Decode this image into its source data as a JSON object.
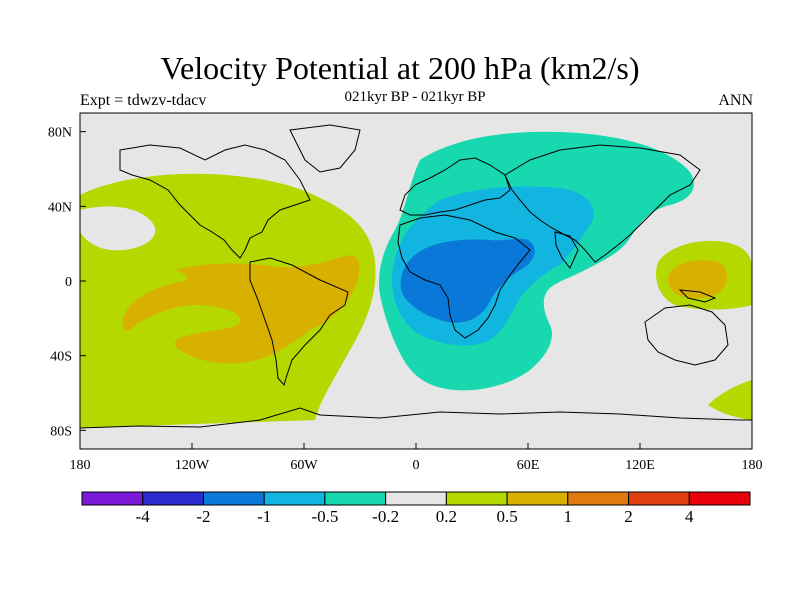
{
  "title": "Velocity Potential at 200 hPa (km2/s)",
  "subtitle": "021kyr BP - 021kyr BP",
  "left_string": "Expt = tdwzv-tdacv",
  "right_string": "ANN",
  "chart_data": {
    "type": "heatmap",
    "title": "Velocity Potential at 200 hPa (km2/s)",
    "subtitle": "021kyr BP - 021kyr BP",
    "projection": "cylindrical-equidistant",
    "lon_range": [
      -180,
      180
    ],
    "lat_range": [
      -90,
      90
    ],
    "x_ticks": [
      "180",
      "120W",
      "60W",
      "0",
      "60E",
      "120E",
      "180"
    ],
    "x_tick_values": [
      -180,
      -120,
      -60,
      0,
      60,
      120,
      180
    ],
    "y_ticks": [
      "80N",
      "40N",
      "0",
      "40S",
      "80S"
    ],
    "y_tick_values": [
      80,
      40,
      0,
      -40,
      -80
    ],
    "colorbar": {
      "levels": [
        "-4",
        "-2",
        "-1",
        "-0.5",
        "-0.2",
        "0.2",
        "0.5",
        "1",
        "2",
        "4"
      ],
      "colors": [
        "#7a1ad6",
        "#2d2ccf",
        "#0a78d8",
        "#12b4e0",
        "#18d8b0",
        "#e6e6e6",
        "#b4d800",
        "#d8b000",
        "#e07a10",
        "#e04010",
        "#e8000c"
      ]
    },
    "regions_note": "Negative (blue/teal) over Africa-Eurasia-Indian Ocean, minimum below -1 over central Africa; positive (green/yellow) over the Americas-Pacific, maximum 0.5-1 over South America/SE Pacific and near New Guinea/W Pacific."
  }
}
